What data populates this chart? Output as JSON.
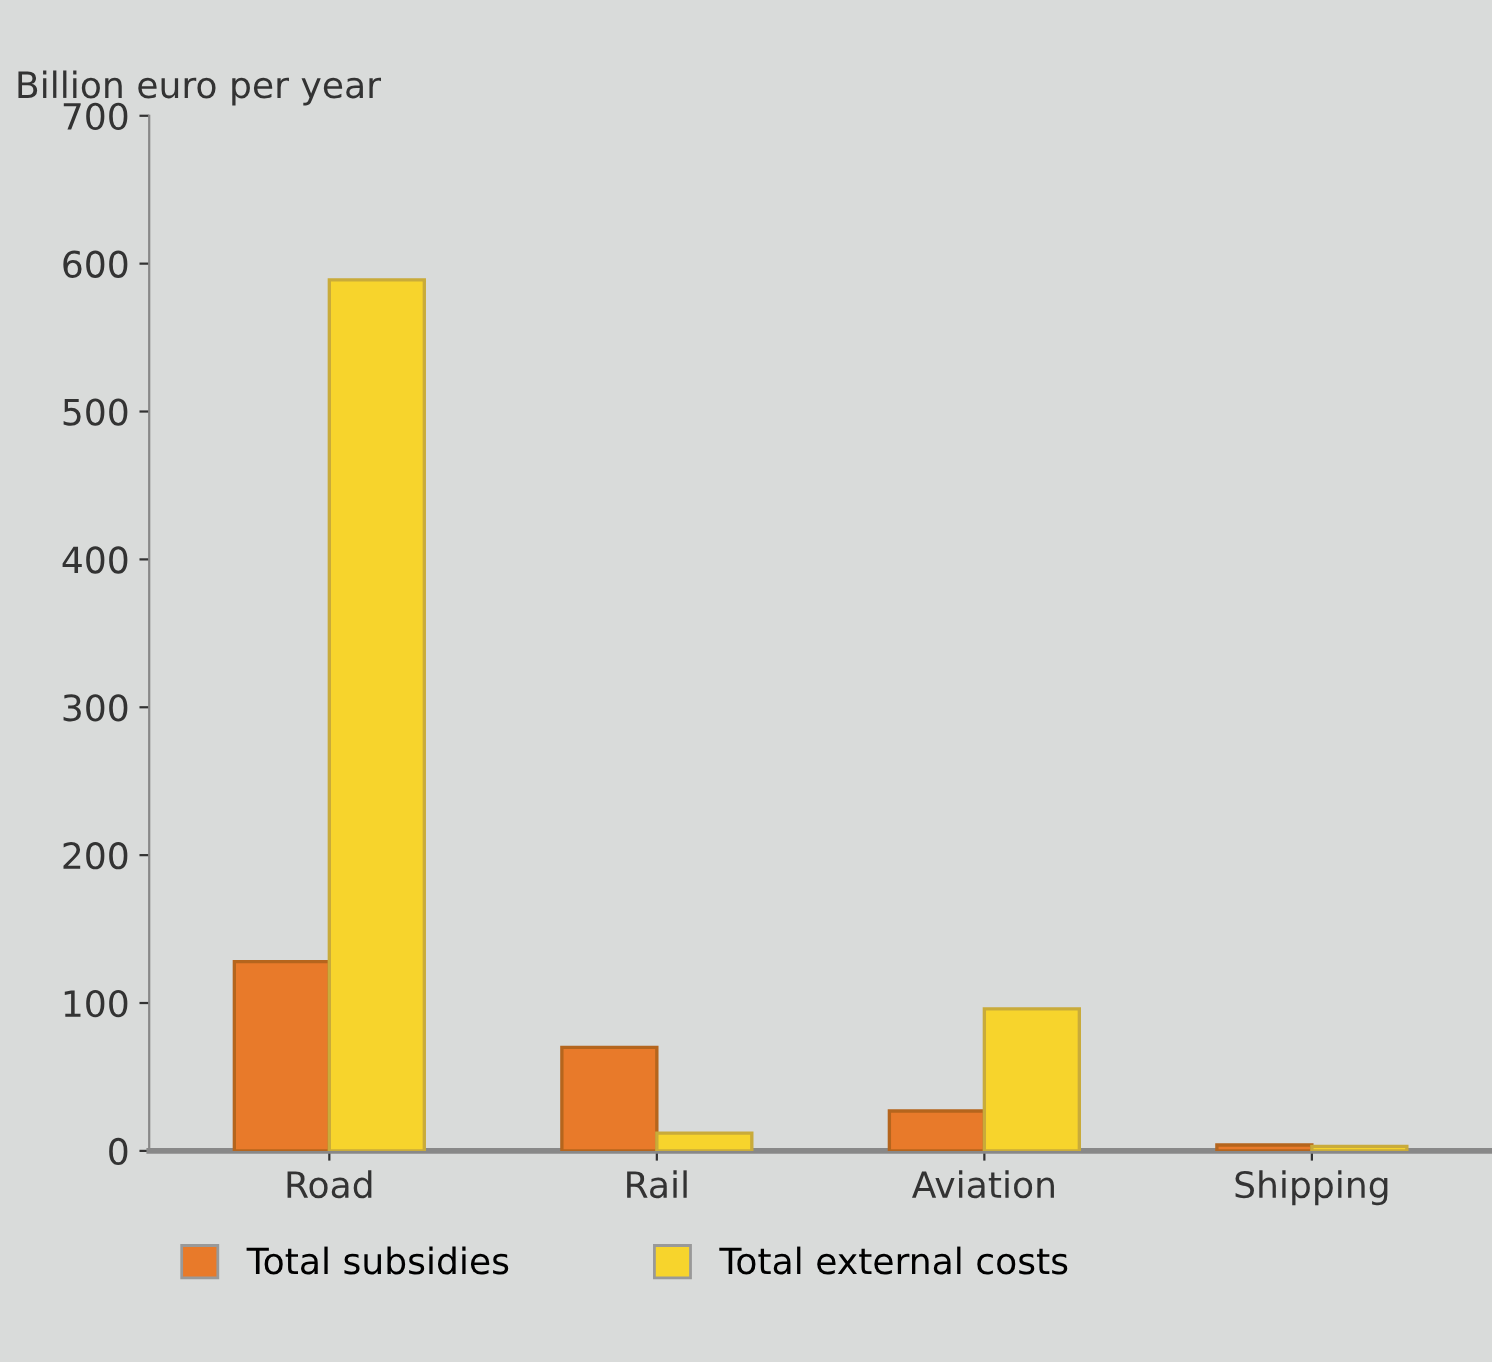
{
  "chart_data": {
    "type": "bar",
    "ylabel": "Billion euro per year",
    "categories": [
      "Road",
      "Rail",
      "Aviation",
      "Shipping"
    ],
    "series": [
      {
        "name": "Total subsidies",
        "color": "#e87a2a",
        "values": [
          128,
          70,
          27,
          4
        ]
      },
      {
        "name": "Total external costs",
        "color": "#f7d42c",
        "values": [
          589,
          12,
          96,
          3
        ]
      }
    ],
    "ylim": [
      0,
      700
    ],
    "yticks": [
      0,
      100,
      200,
      300,
      400,
      500,
      600,
      700
    ],
    "grid": false,
    "legend": "bottom"
  }
}
